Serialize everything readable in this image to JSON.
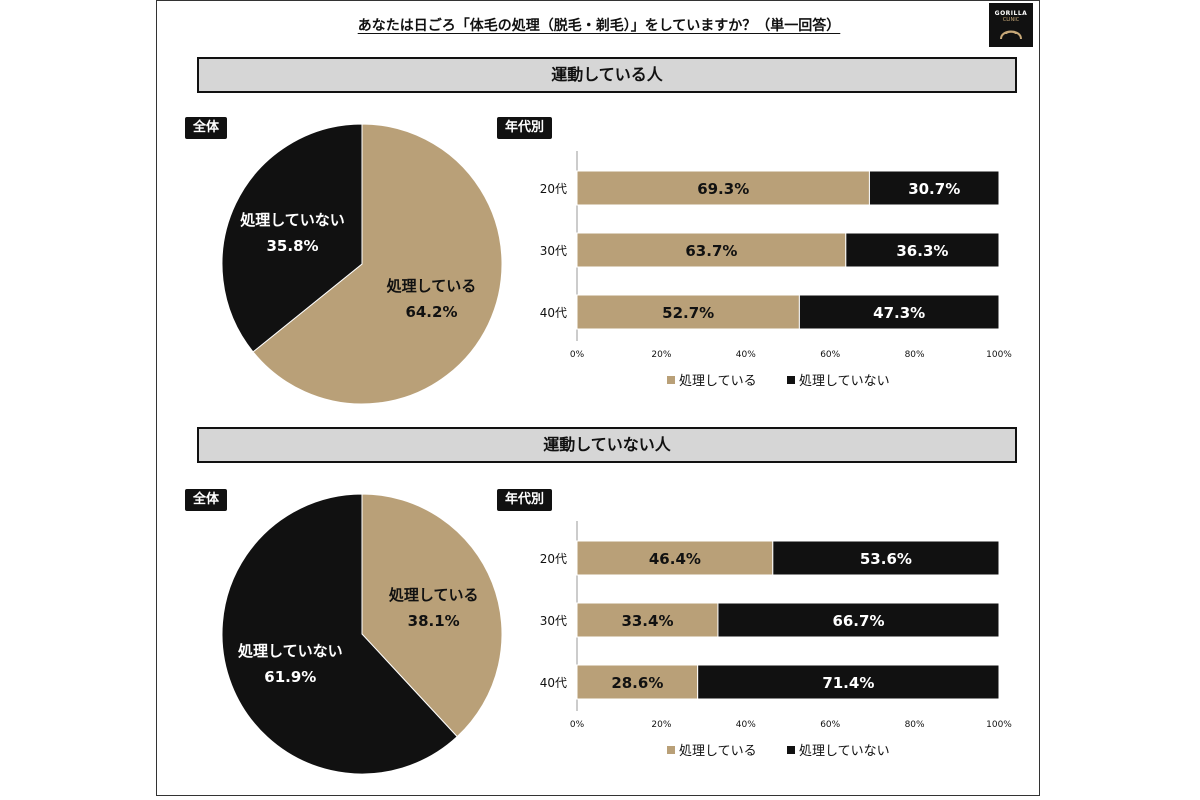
{
  "title": "あなたは日ごろ「体毛の処理（脱毛・剃毛）」をしていますか？（単一回答）",
  "logo": {
    "line1": "GORILLA",
    "line2": "CLINIC"
  },
  "colors": {
    "do": "#b9a078",
    "dont": "#111111",
    "band": "#d6d6d6"
  },
  "legend": {
    "do": "処理している",
    "dont": "処理していない"
  },
  "chart_data": [
    {
      "section": "運動している人",
      "pie_tag": "全体",
      "bar_tag": "年代別",
      "pie": {
        "type": "pie",
        "slices": [
          {
            "label": "処理している",
            "value": 64.2,
            "display": "64.2%"
          },
          {
            "label": "処理していない",
            "value": 35.8,
            "display": "35.8%"
          }
        ]
      },
      "bars": {
        "type": "bar",
        "orientation": "horizontal-stacked-100",
        "categories": [
          "20代",
          "30代",
          "40代"
        ],
        "series": [
          {
            "name": "処理している",
            "values": [
              69.3,
              63.7,
              52.7
            ],
            "labels": [
              "69.3%",
              "63.7%",
              "52.7%"
            ]
          },
          {
            "name": "処理していない",
            "values": [
              30.7,
              36.3,
              47.3
            ],
            "labels": [
              "30.7%",
              "36.3%",
              "47.3%"
            ]
          }
        ],
        "xlim": [
          0,
          100
        ],
        "x_ticks": [
          "0%",
          "20%",
          "40%",
          "60%",
          "80%",
          "100%"
        ]
      }
    },
    {
      "section": "運動していない人",
      "pie_tag": "全体",
      "bar_tag": "年代別",
      "pie": {
        "type": "pie",
        "slices": [
          {
            "label": "処理している",
            "value": 38.1,
            "display": "38.1%"
          },
          {
            "label": "処理していない",
            "value": 61.9,
            "display": "61.9%"
          }
        ]
      },
      "bars": {
        "type": "bar",
        "orientation": "horizontal-stacked-100",
        "categories": [
          "20代",
          "30代",
          "40代"
        ],
        "series": [
          {
            "name": "処理している",
            "values": [
              46.4,
              33.4,
              28.6
            ],
            "labels": [
              "46.4%",
              "33.4%",
              "28.6%"
            ]
          },
          {
            "name": "処理していない",
            "values": [
              53.6,
              66.7,
              71.4
            ],
            "labels": [
              "53.6%",
              "66.7%",
              "71.4%"
            ]
          }
        ],
        "xlim": [
          0,
          100
        ],
        "x_ticks": [
          "0%",
          "20%",
          "40%",
          "60%",
          "80%",
          "100%"
        ]
      }
    }
  ]
}
